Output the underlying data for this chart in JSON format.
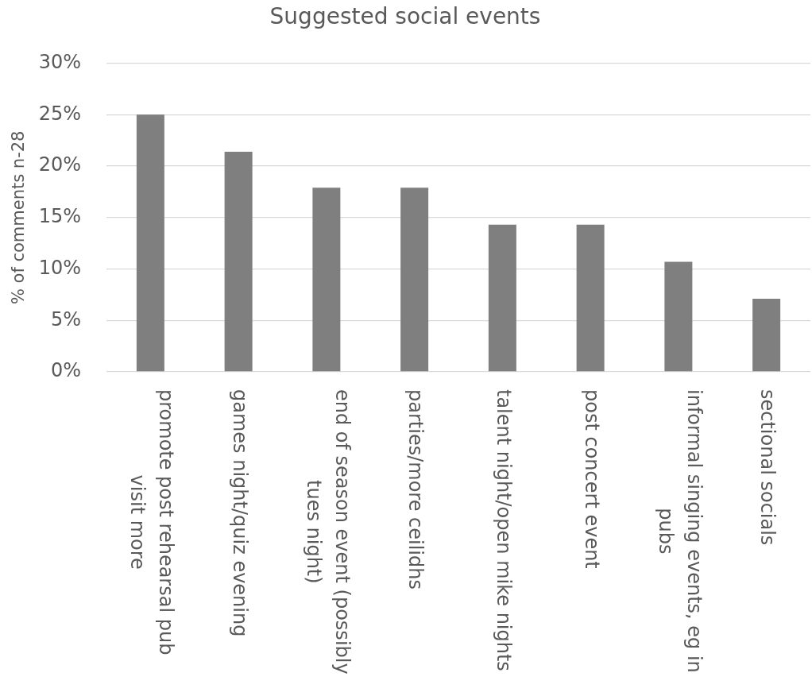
{
  "chart_data": {
    "type": "bar",
    "title": "Suggested social events",
    "ylabel": "% of comments n-28",
    "categories": [
      "promote post rehearsal pub visit more",
      "games night/quiz evening",
      "end of season event (possibly tues night)",
      "parties/more ceilidhs",
      "talent night/open mike nights",
      "post concert event",
      "informal singing events, eg in pubs",
      "sectional socials"
    ],
    "values": [
      25,
      21.4,
      17.9,
      17.9,
      14.3,
      14.3,
      10.7,
      7.1
    ],
    "color": "#7f7f7f",
    "ylim": [
      0,
      30
    ],
    "yticks": [
      {
        "value": 0,
        "label": "0%"
      },
      {
        "value": 5,
        "label": "5%"
      },
      {
        "value": 10,
        "label": "10%"
      },
      {
        "value": 15,
        "label": "15%"
      },
      {
        "value": 20,
        "label": "20%"
      },
      {
        "value": 25,
        "label": "25%"
      },
      {
        "value": 30,
        "label": "30%"
      }
    ],
    "grid": "y"
  }
}
